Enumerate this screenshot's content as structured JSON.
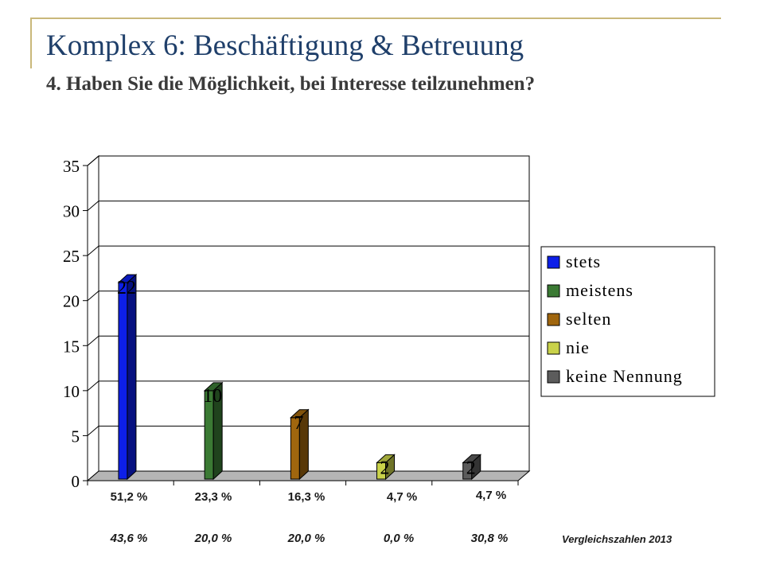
{
  "title": "Komplex 6: Beschäftigung & Betreuung",
  "subtitle": "4. Haben Sie die Möglichkeit, bei Interesse teilzunehmen?",
  "percentages": [
    "51,2 %",
    "23,3 %",
    "16,3 %",
    "4,7 %",
    "4,7 %"
  ],
  "comparison": {
    "values": [
      "43,6 %",
      "20,0 %",
      "20,0 %",
      "0,0 %",
      "30,8 %"
    ],
    "label": "Vergleichszahlen 2013"
  },
  "chart_data": {
    "type": "bar",
    "categories": [
      "stets",
      "meistens",
      "selten",
      "nie",
      "keine Nennung"
    ],
    "values": [
      22,
      10,
      7,
      2,
      2
    ],
    "data_labels": [
      "22",
      "10",
      "7",
      "2",
      "2"
    ],
    "ylim": [
      0,
      35
    ],
    "yticks": [
      0,
      5,
      10,
      15,
      20,
      25,
      30,
      35
    ],
    "ytick_labels": [
      "0",
      "5",
      "10",
      "15",
      "20",
      "25",
      "30",
      "35"
    ],
    "grid": true,
    "legend": {
      "position": "right",
      "entries": [
        "stets",
        "meistens",
        "selten",
        "nie",
        "keine Nennung"
      ]
    },
    "colors": [
      "#0d1fe8",
      "#3b7a34",
      "#a0660e",
      "#c9d24a",
      "#5c5c5c"
    ]
  }
}
